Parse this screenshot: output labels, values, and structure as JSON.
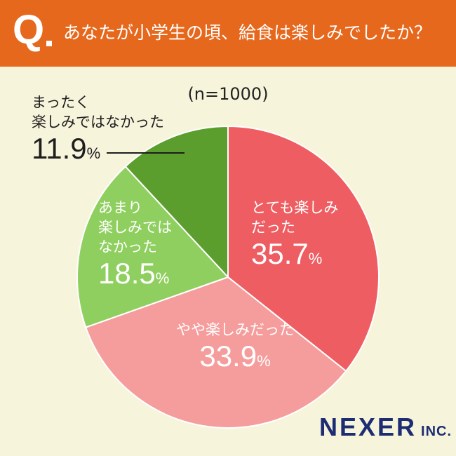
{
  "header": {
    "q_mark": "Q",
    "question": "あなたが小学生の頃、給食は楽しみでしたか？"
  },
  "sample_size": "(n=1000)",
  "brand": {
    "name": "NEXER",
    "suffix": "INC."
  },
  "colors": {
    "banner": "#e6681d",
    "background": "#f7f4dc",
    "very_enjoyed": "#ee5d61",
    "somewhat_enjoyed": "#f59d9c",
    "not_really": "#8fcf5f",
    "not_at_all": "#5b9e2e",
    "brand": "#1d2c73"
  },
  "chart_data": {
    "type": "pie",
    "title": "あなたが小学生の頃、給食は楽しみでしたか？",
    "unit": "%",
    "start_angle": "12 o'clock, clockwise",
    "slices": [
      {
        "label_lines": [
          "とても楽しみ",
          "だった"
        ],
        "value": 35.7,
        "value_text": "35.7",
        "color": "#ee5d61"
      },
      {
        "label_lines": [
          "やや楽しみだった"
        ],
        "value": 33.9,
        "value_text": "33.9",
        "color": "#f59d9c"
      },
      {
        "label_lines": [
          "あまり",
          "楽しみでは",
          "なかった"
        ],
        "value": 18.5,
        "value_text": "18.5",
        "color": "#8fcf5f"
      },
      {
        "label_lines": [
          "まったく",
          "楽しみではなかった"
        ],
        "value": 11.9,
        "value_text": "11.9",
        "color": "#5b9e2e"
      }
    ]
  }
}
